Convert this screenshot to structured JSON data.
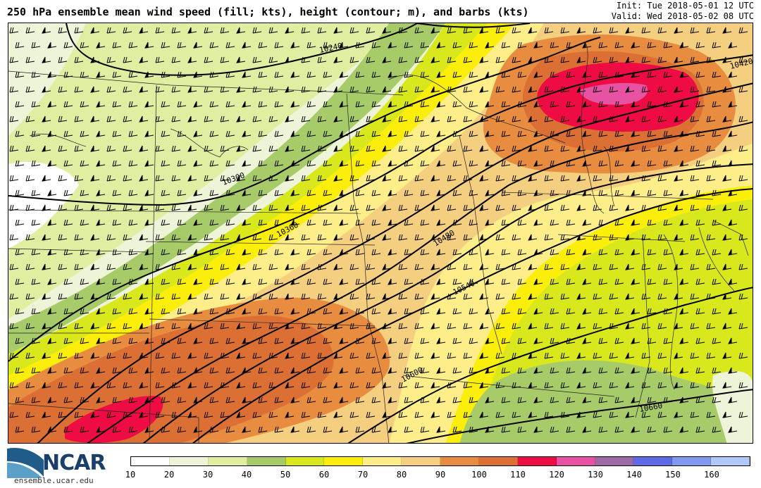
{
  "header": {
    "title": "250 hPa ensemble mean wind speed (fill; kts), height (contour; m), and barbs (kts)",
    "init": "Init: Tue 2018-05-01 12 UTC",
    "valid": "Valid: Wed 2018-05-02 08 UTC"
  },
  "map": {
    "contour_labels": [
      "10240",
      "10300",
      "10360",
      "10420",
      "10480",
      "10540",
      "10600",
      "10660"
    ]
  },
  "branding": {
    "org": "NCAR",
    "url": "ensemble.ucar.edu"
  },
  "legend": {
    "ticks": [
      "10",
      "20",
      "30",
      "40",
      "50",
      "60",
      "70",
      "80",
      "90",
      "100",
      "110",
      "120",
      "130",
      "140",
      "150",
      "160"
    ],
    "colors": [
      "#ffffff",
      "#eef4d8",
      "#dfeea0",
      "#a8cb6a",
      "#d8e81c",
      "#fbee0a",
      "#fdee8a",
      "#f5cf80",
      "#e88c40",
      "#dc7034",
      "#ef0b43",
      "#e752a3",
      "#9e6aa6",
      "#5e6ae6",
      "#7f98f0",
      "#b0c8f8"
    ]
  }
}
